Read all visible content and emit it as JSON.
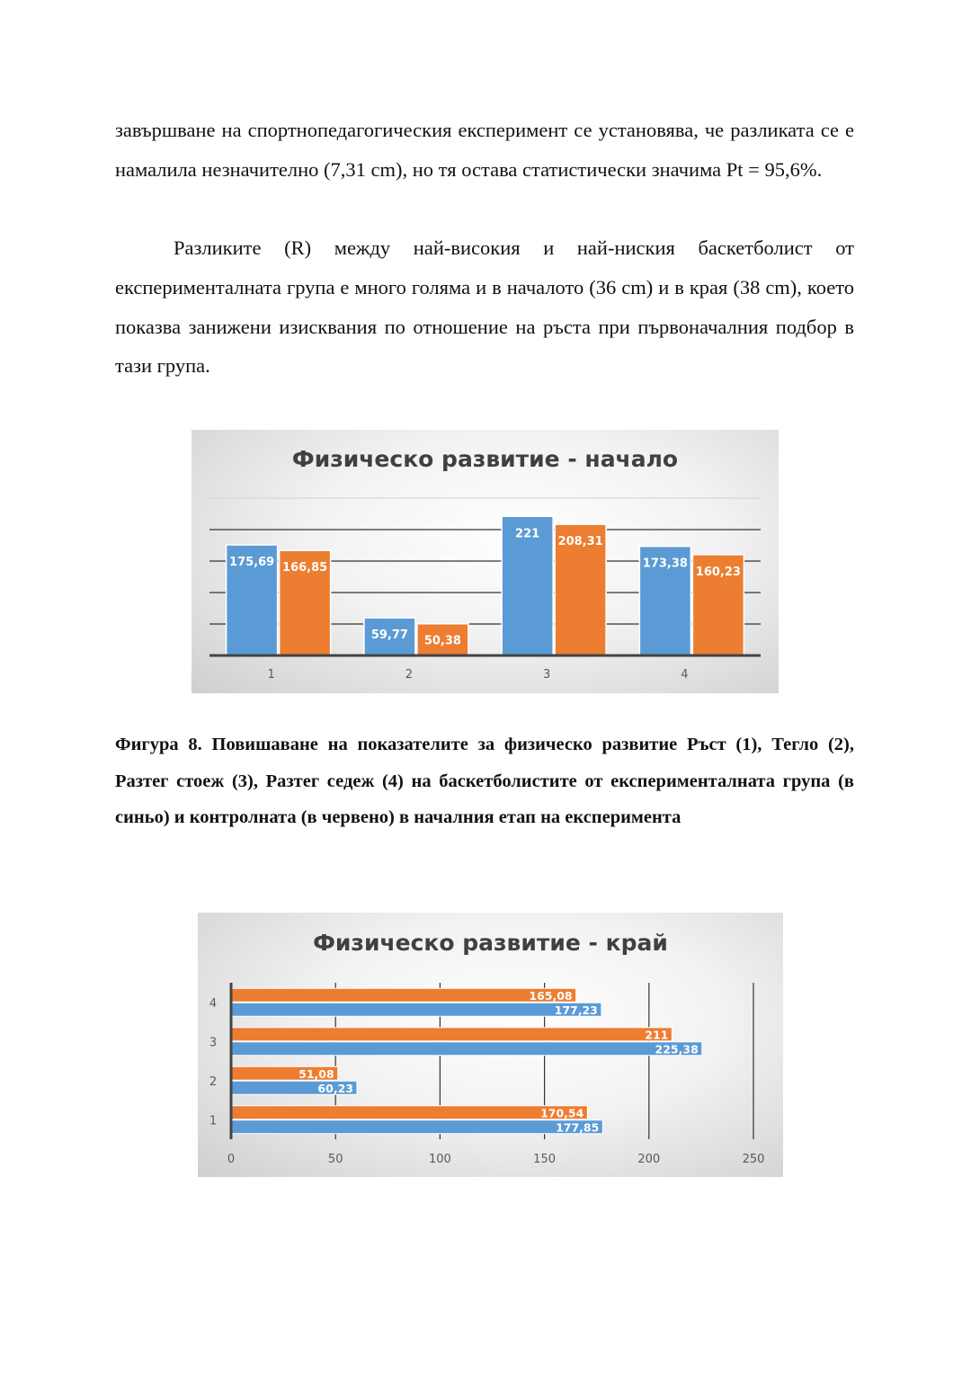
{
  "body": {
    "paragraph1": "завършване на спортнопедагогическия експеримент се установява, че разликата се е намалила незначително (7,31 cm), но тя остава статистически значима Pt = 95,6%.",
    "paragraph2": "Разликите (R) между най-високия и най-ниския баскетболист от експерименталната група е много голяма и в началото (36 cm) и в края (38 cm), което показва занижени изисквания по отношение на ръста при първоначалния подбор в тази група."
  },
  "caption": "Фигура 8. Повишаване на показателите за физическо развитие Ръст (1), Тегло (2), Разтег стоеж (3), Разтег седеж (4) на баскетболистите от експерименталната група (в синьо) и контролната (в червено) в началния етап на експеримента",
  "colors": {
    "blue": "#5b9bd5",
    "orange": "#ed7d31"
  },
  "chart_data": [
    {
      "type": "bar",
      "orientation": "vertical",
      "title": "Физическо развитие - начало",
      "categories": [
        "1",
        "2",
        "3",
        "4"
      ],
      "series": [
        {
          "values": [
            175.69,
            59.77,
            221,
            173.38
          ],
          "labels": [
            "175,69",
            "59,77",
            "221",
            "173,38"
          ],
          "color": "#5b9bd5"
        },
        {
          "values": [
            166.85,
            50.38,
            208.31,
            160.23
          ],
          "labels": [
            "166,85",
            "50,38",
            "208,31",
            "160,23"
          ],
          "color": "#ed7d31"
        }
      ],
      "ylim": [
        0,
        250
      ],
      "grid": true
    },
    {
      "type": "bar",
      "orientation": "horizontal",
      "title": "Физическо развитие - край",
      "categories": [
        "1",
        "2",
        "3",
        "4"
      ],
      "series": [
        {
          "values": [
            177.85,
            60.23,
            225.38,
            177.23
          ],
          "labels": [
            "177,85",
            "60,23",
            "225,38",
            "177,23"
          ],
          "color": "#5b9bd5"
        },
        {
          "values": [
            170.54,
            51.08,
            211,
            165.08
          ],
          "labels": [
            "170,54",
            "51,08",
            "211",
            "165,08"
          ],
          "color": "#ed7d31"
        }
      ],
      "xlim": [
        0,
        250
      ],
      "xticks": [
        "0",
        "50",
        "100",
        "150",
        "200",
        "250"
      ],
      "grid": true
    }
  ]
}
